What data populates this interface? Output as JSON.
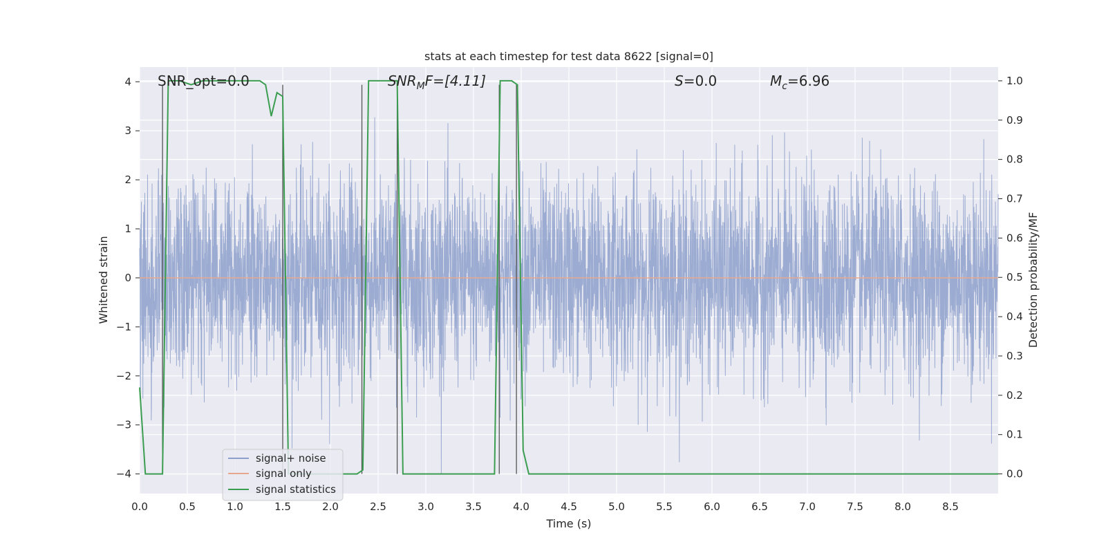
{
  "chart_data": {
    "type": "line",
    "title": "stats at each timestep for test data 8622 [signal=0]",
    "xlabel": "Time (s)",
    "ylabel_left": "Whitened strain",
    "ylabel_right": "Detection probability/MF",
    "xlim": [
      0.0,
      9.0
    ],
    "ylim_left": [
      -4.4,
      4.3
    ],
    "ylim_right": [
      -0.05,
      1.035
    ],
    "xticks": [
      0.0,
      0.5,
      1.0,
      1.5,
      2.0,
      2.5,
      3.0,
      3.5,
      4.0,
      4.5,
      5.0,
      5.5,
      6.0,
      6.5,
      7.0,
      7.5,
      8.0,
      8.5
    ],
    "xtick_labels": [
      "0.0",
      "0.5",
      "1.0",
      "1.5",
      "2.0",
      "2.5",
      "3.0",
      "3.5",
      "4.0",
      "4.5",
      "5.0",
      "5.5",
      "6.0",
      "6.5",
      "7.0",
      "7.5",
      "8.0",
      "8.5"
    ],
    "yticks_left": [
      -4,
      -3,
      -2,
      -1,
      0,
      1,
      2,
      3,
      4
    ],
    "ytick_labels_left": [
      "−4",
      "−3",
      "−2",
      "−1",
      "0",
      "1",
      "2",
      "3",
      "4"
    ],
    "yticks_right": [
      0.0,
      0.1,
      0.2,
      0.3,
      0.4,
      0.5,
      0.6,
      0.7,
      0.8,
      0.9,
      1.0
    ],
    "ytick_labels_right": [
      "0.0",
      "0.1",
      "0.2",
      "0.3",
      "0.4",
      "0.5",
      "0.6",
      "0.7",
      "0.8",
      "0.9",
      "1.0"
    ],
    "annotations": {
      "snr_opt": "SNR_opt=0.0",
      "snr_mf_base": "SNR",
      "snr_mf_sub": "M",
      "snr_mf_rest": "F=[4.11]",
      "s_label": "S",
      "s_rest": "=0.0",
      "mc_base": "M",
      "mc_sub": "c",
      "mc_rest": "=6.96"
    },
    "legend": {
      "location": "lower-left",
      "entries": [
        {
          "label": "signal+ noise",
          "color": "#8da0cb"
        },
        {
          "label": "signal only",
          "color": "#e8a78c"
        },
        {
          "label": "signal statistics",
          "color": "#3a9d4f"
        }
      ]
    },
    "series": [
      {
        "name": "signal+ noise",
        "axis": "left",
        "color": "#8da0cb",
        "description": "whitened strain noise, roughly N(0,1), range about -4 to 4",
        "samples": 4000,
        "std": 1.0
      },
      {
        "name": "signal only",
        "axis": "left",
        "color": "#e8a78c",
        "constant_value": 0.0
      },
      {
        "name": "signal statistics",
        "axis": "right",
        "color": "#3a9d4f",
        "x": [
          0.0,
          0.06,
          0.12,
          0.24,
          0.3,
          0.42,
          0.54,
          0.66,
          0.78,
          0.9,
          1.02,
          1.14,
          1.26,
          1.32,
          1.38,
          1.44,
          1.5,
          1.56,
          1.62,
          1.68,
          1.8,
          1.92,
          2.04,
          2.16,
          2.28,
          2.34,
          2.4,
          2.52,
          2.64,
          2.7,
          2.76,
          2.82,
          2.94,
          3.06,
          3.18,
          3.3,
          3.42,
          3.54,
          3.66,
          3.72,
          3.78,
          3.84,
          3.9,
          3.96,
          4.02,
          4.08,
          4.14,
          4.26,
          4.5,
          5.0,
          5.5,
          6.0,
          6.5,
          7.0,
          7.5,
          8.0,
          8.5,
          9.0
        ],
        "y": [
          0.22,
          0.0,
          0.0,
          0.0,
          1.0,
          1.0,
          0.99,
          1.0,
          1.0,
          1.0,
          1.0,
          1.0,
          1.0,
          0.99,
          0.91,
          0.97,
          0.96,
          0.0,
          0.0,
          0.0,
          0.0,
          0.0,
          0.0,
          0.0,
          0.0,
          0.01,
          1.0,
          1.0,
          1.0,
          1.0,
          0.0,
          0.0,
          0.0,
          0.0,
          0.0,
          0.0,
          0.0,
          0.0,
          0.0,
          0.0,
          1.0,
          1.0,
          1.0,
          0.99,
          0.06,
          0.0,
          0.0,
          0.0,
          0.0,
          0.0,
          0.0,
          0.0,
          0.0,
          0.0,
          0.0,
          0.0,
          0.0,
          0.0
        ]
      }
    ],
    "vlines": {
      "color": "#555555",
      "x": [
        0.24,
        1.5,
        2.33,
        2.7,
        3.77,
        3.95
      ],
      "right_axis_top": 0.99
    }
  }
}
